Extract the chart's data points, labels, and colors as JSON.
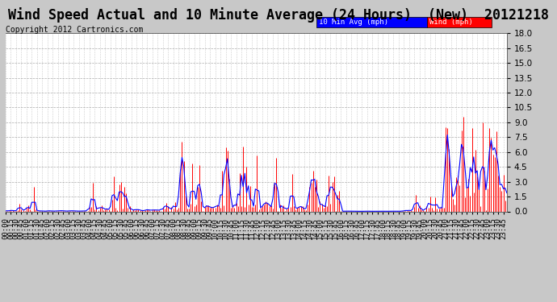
{
  "title": "Wind Speed Actual and 10 Minute Average (24 Hours)  (New)  20121218",
  "copyright": "Copyright 2012 Cartronics.com",
  "legend_label_avg": "10 Min Avg (mph)",
  "legend_label_wind": "Wind (mph)",
  "legend_color_avg": "#0000ff",
  "legend_color_wind": "#ff0000",
  "yticks": [
    0.0,
    1.5,
    3.0,
    4.5,
    6.0,
    7.5,
    9.0,
    10.5,
    12.0,
    13.5,
    15.0,
    16.5,
    18.0
  ],
  "ymin": 0.0,
  "ymax": 18.0,
  "bg_color": "#c8c8c8",
  "plot_bg": "#ffffff",
  "grid_color": "#999999",
  "wind_color": "#ff0000",
  "avg_color": "#0000ff",
  "title_fontsize": 12,
  "copyright_fontsize": 7,
  "tick_fontsize": 6.5,
  "ytick_fontsize": 7.5,
  "seed": 42,
  "n_points": 288,
  "segments": [
    [
      0,
      6,
      0.05,
      0.3,
      0.05
    ],
    [
      6,
      18,
      0.15,
      2.5,
      0.2
    ],
    [
      18,
      36,
      0.05,
      0.5,
      0.05
    ],
    [
      36,
      48,
      0.05,
      0.3,
      0.05
    ],
    [
      48,
      72,
      0.2,
      3.5,
      0.3
    ],
    [
      72,
      90,
      0.1,
      2.0,
      0.15
    ],
    [
      90,
      108,
      0.25,
      7.5,
      0.4
    ],
    [
      108,
      126,
      0.3,
      5.0,
      0.5
    ],
    [
      126,
      156,
      0.35,
      6.0,
      0.6
    ],
    [
      156,
      192,
      0.2,
      5.5,
      0.4
    ],
    [
      192,
      228,
      0.02,
      0.5,
      0.02
    ],
    [
      228,
      234,
      0.1,
      1.5,
      0.1
    ],
    [
      234,
      252,
      0.3,
      3.5,
      0.3
    ],
    [
      252,
      288,
      0.7,
      8.0,
      1.5
    ]
  ]
}
